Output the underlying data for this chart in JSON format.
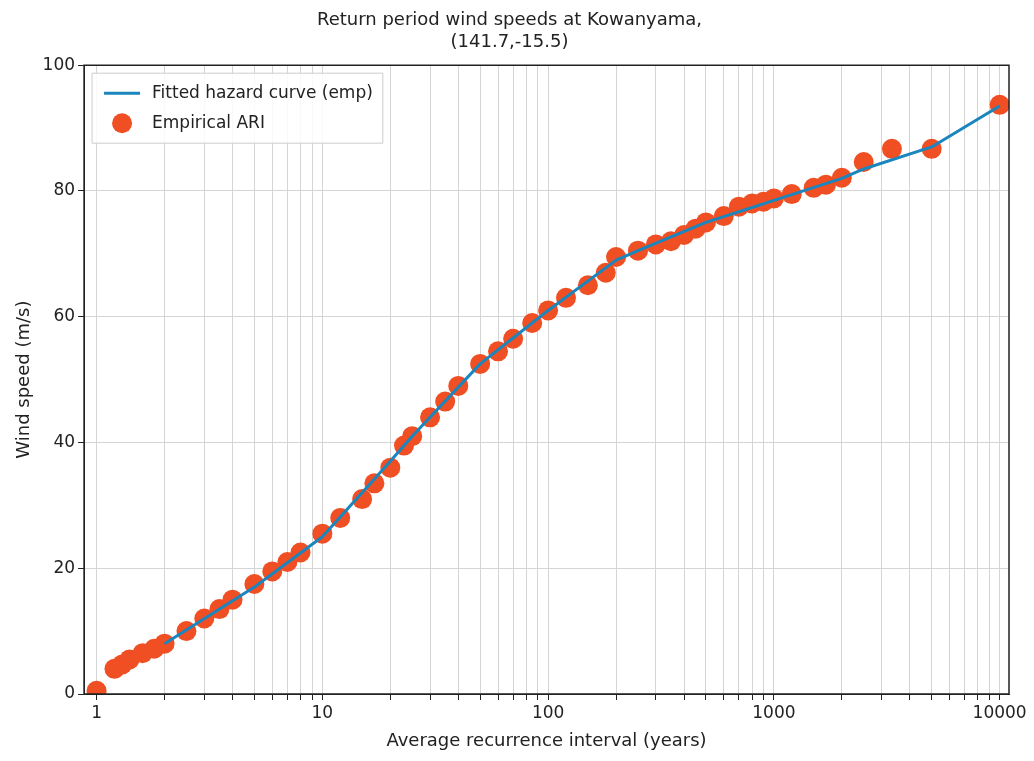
{
  "chart_data": {
    "type": "line",
    "title": "Return period wind speeds at Kowanyama,\n(141.7,-15.5)",
    "xlabel": "Average recurrence interval (years)",
    "ylabel": "Wind speed (m/s)",
    "log": "x",
    "xlim": [
      0.88,
      11000
    ],
    "ylim": [
      0,
      100
    ],
    "xticks": [
      1,
      {
        "value": 2,
        "label": null
      },
      {
        "value": 3,
        "label": null
      },
      {
        "value": 4,
        "label": null
      },
      {
        "value": 5,
        "label": null
      },
      {
        "value": 6,
        "label": null
      },
      {
        "value": 7,
        "label": null
      },
      {
        "value": 8,
        "label": null
      },
      {
        "value": 9,
        "label": null
      },
      10,
      {
        "value": 20,
        "label": null
      },
      {
        "value": 30,
        "label": null
      },
      {
        "value": 40,
        "label": null
      },
      {
        "value": 50,
        "label": null
      },
      {
        "value": 60,
        "label": null
      },
      {
        "value": 70,
        "label": null
      },
      {
        "value": 80,
        "label": null
      },
      {
        "value": 90,
        "label": null
      },
      100,
      {
        "value": 200,
        "label": null
      },
      {
        "value": 300,
        "label": null
      },
      {
        "value": 400,
        "label": null
      },
      {
        "value": 500,
        "label": null
      },
      {
        "value": 600,
        "label": null
      },
      {
        "value": 700,
        "label": null
      },
      {
        "value": 800,
        "label": null
      },
      {
        "value": 900,
        "label": null
      },
      1000,
      {
        "value": 2000,
        "label": null
      },
      {
        "value": 3000,
        "label": null
      },
      {
        "value": 4000,
        "label": null
      },
      {
        "value": 5000,
        "label": null
      },
      {
        "value": 6000,
        "label": null
      },
      {
        "value": 7000,
        "label": null
      },
      {
        "value": 8000,
        "label": null
      },
      {
        "value": 9000,
        "label": null
      },
      10000
    ],
    "yticks": [
      0,
      20,
      40,
      60,
      80,
      100
    ],
    "grid": true,
    "legend": "top left",
    "series": [
      {
        "name": "Fitted hazard curve (emp)",
        "type": "line",
        "color": "#1a86bd",
        "marker": "none",
        "x": [
          2,
          5,
          10,
          20,
          25,
          50,
          100,
          200,
          250,
          500,
          1000,
          2000,
          2500,
          5000,
          10000
        ],
        "values": [
          8,
          17,
          25,
          37,
          41,
          52.5,
          61,
          69,
          70.5,
          75,
          78.5,
          82,
          83.5,
          87,
          93.5
        ]
      },
      {
        "name": "Empirical ARI",
        "type": "scatter",
        "color": "#f04e23",
        "marker": "circle",
        "x": [
          1,
          1.2,
          1.3,
          1.4,
          1.6,
          1.8,
          2,
          2.5,
          3,
          3.5,
          4,
          5,
          6,
          7,
          8,
          10,
          12,
          15,
          17,
          20,
          23,
          25,
          30,
          35,
          40,
          50,
          60,
          70,
          85,
          100,
          120,
          150,
          180,
          200,
          250,
          300,
          350,
          400,
          450,
          500,
          600,
          700,
          800,
          900,
          1000,
          1200,
          1500,
          1700,
          2000,
          2500,
          3333,
          5000,
          10000
        ],
        "values": [
          0.5,
          4,
          4.7,
          5.5,
          6.5,
          7.2,
          8,
          10,
          12,
          13.5,
          15,
          17.5,
          19.5,
          21,
          22.5,
          25.5,
          28,
          31,
          33.5,
          36,
          39.5,
          41,
          44,
          46.5,
          49,
          52.5,
          54.5,
          56.5,
          59,
          61,
          63,
          65,
          67,
          69.5,
          70.5,
          71.5,
          72,
          73,
          74,
          75,
          76,
          77.5,
          78,
          78.3,
          78.8,
          79.5,
          80.5,
          81,
          82.1,
          84.6,
          86.7,
          86.7,
          93.7
        ]
      }
    ]
  }
}
